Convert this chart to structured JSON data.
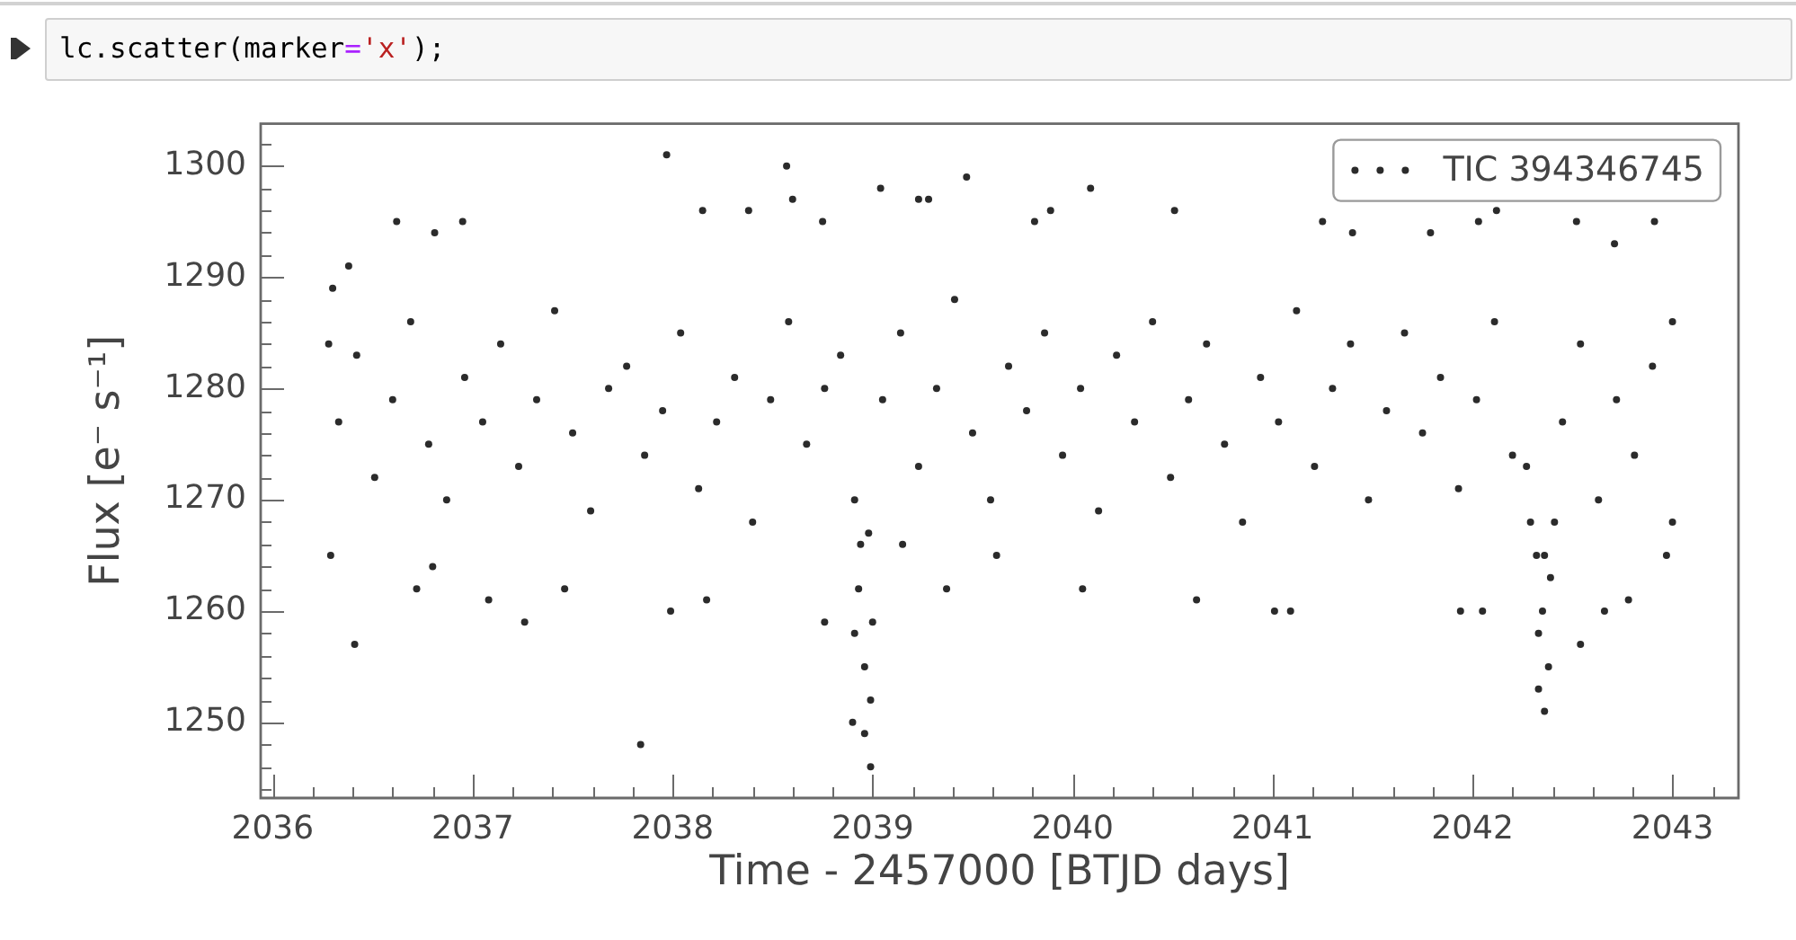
{
  "chart_data": {
    "type": "scatter",
    "xlabel": "Time - 2457000 [BTJD days]",
    "ylabel": "Flux [e⁻ s⁻¹]",
    "annotations": [
      "lc.scatter(marker='x');"
    ],
    "xlim": [
      2035.94,
      2043.33
    ],
    "ylim": [
      1243.2,
      1303.8
    ],
    "xticks": [
      2036,
      {
        "value": 2036.2,
        "label": null
      },
      {
        "value": 2036.4,
        "label": null
      },
      {
        "value": 2036.6,
        "label": null
      },
      {
        "value": 2036.8,
        "label": null
      },
      2037,
      {
        "value": 2037.2,
        "label": null
      },
      {
        "value": 2037.4,
        "label": null
      },
      {
        "value": 2037.6,
        "label": null
      },
      {
        "value": 2037.8,
        "label": null
      },
      2038,
      {
        "value": 2038.2,
        "label": null
      },
      {
        "value": 2038.4,
        "label": null
      },
      {
        "value": 2038.6,
        "label": null
      },
      {
        "value": 2038.8,
        "label": null
      },
      2039,
      {
        "value": 2039.2,
        "label": null
      },
      {
        "value": 2039.4,
        "label": null
      },
      {
        "value": 2039.6,
        "label": null
      },
      {
        "value": 2039.8,
        "label": null
      },
      2040,
      {
        "value": 2040.2,
        "label": null
      },
      {
        "value": 2040.4,
        "label": null
      },
      {
        "value": 2040.6,
        "label": null
      },
      {
        "value": 2040.8,
        "label": null
      },
      2041,
      {
        "value": 2041.2,
        "label": null
      },
      {
        "value": 2041.4,
        "label": null
      },
      {
        "value": 2041.6,
        "label": null
      },
      {
        "value": 2041.8,
        "label": null
      },
      2042,
      {
        "value": 2042.2,
        "label": null
      },
      {
        "value": 2042.4,
        "label": null
      },
      {
        "value": 2042.6,
        "label": null
      },
      {
        "value": 2042.8,
        "label": null
      },
      2043,
      {
        "value": 2043.2,
        "label": null
      }
    ],
    "yticks": [
      {
        "value": 1244,
        "label": null
      },
      {
        "value": 1246,
        "label": null
      },
      {
        "value": 1248,
        "label": null
      },
      1250,
      {
        "value": 1252,
        "label": null
      },
      {
        "value": 1254,
        "label": null
      },
      {
        "value": 1256,
        "label": null
      },
      {
        "value": 1258,
        "label": null
      },
      1260,
      {
        "value": 1262,
        "label": null
      },
      {
        "value": 1264,
        "label": null
      },
      {
        "value": 1266,
        "label": null
      },
      {
        "value": 1268,
        "label": null
      },
      1270,
      {
        "value": 1272,
        "label": null
      },
      {
        "value": 1274,
        "label": null
      },
      {
        "value": 1276,
        "label": null
      },
      {
        "value": 1278,
        "label": null
      },
      1280,
      {
        "value": 1282,
        "label": null
      },
      {
        "value": 1284,
        "label": null
      },
      {
        "value": 1286,
        "label": null
      },
      {
        "value": 1288,
        "label": null
      },
      1290,
      {
        "value": 1292,
        "label": null
      },
      {
        "value": 1294,
        "label": null
      },
      {
        "value": 1296,
        "label": null
      },
      {
        "value": 1298,
        "label": null
      },
      1300,
      {
        "value": 1302,
        "label": null
      }
    ],
    "legend": "top right",
    "marker": "circle",
    "series": [
      {
        "name": "TIC 394346745",
        "color": "#2b2b2b",
        "x": [
          2036.28,
          2036.29,
          2036.3,
          2036.33,
          2036.38,
          2036.41,
          2036.42,
          2036.51,
          2036.6,
          2036.62,
          2036.69,
          2036.72,
          2036.78,
          2036.8,
          2036.81,
          2036.87,
          2036.95,
          2036.96,
          2037.05,
          2037.08,
          2037.14,
          2037.23,
          2037.26,
          2037.32,
          2037.41,
          2037.46,
          2037.5,
          2037.59,
          2037.68,
          2037.77,
          2037.84,
          2037.86,
          2037.95,
          2037.97,
          2037.99,
          2038.04,
          2038.13,
          2038.15,
          2038.17,
          2038.22,
          2038.31,
          2038.38,
          2038.4,
          2038.49,
          2038.57,
          2038.58,
          2038.6,
          2038.67,
          2038.75,
          2038.76,
          2038.76,
          2038.84,
          2038.9,
          2038.91,
          2038.91,
          2038.93,
          2038.94,
          2038.96,
          2038.96,
          2038.98,
          2038.99,
          2038.99,
          2039.0,
          2039.04,
          2039.05,
          2039.14,
          2039.15,
          2039.23,
          2039.23,
          2039.28,
          2039.32,
          2039.37,
          2039.41,
          2039.47,
          2039.5,
          2039.59,
          2039.62,
          2039.68,
          2039.77,
          2039.81,
          2039.86,
          2039.89,
          2039.95,
          2040.04,
          2040.05,
          2040.09,
          2040.13,
          2040.22,
          2040.31,
          2040.4,
          2040.49,
          2040.51,
          2040.58,
          2040.62,
          2040.67,
          2040.76,
          2040.85,
          2040.94,
          2041.01,
          2041.03,
          2041.09,
          2041.12,
          2041.21,
          2041.25,
          2041.3,
          2041.39,
          2041.4,
          2041.48,
          2041.57,
          2041.66,
          2041.75,
          2041.79,
          2041.84,
          2041.93,
          2041.94,
          2042.02,
          2042.03,
          2042.05,
          2042.11,
          2042.12,
          2042.2,
          2042.27,
          2042.29,
          2042.32,
          2042.33,
          2042.33,
          2042.35,
          2042.36,
          2042.36,
          2042.38,
          2042.39,
          2042.41,
          2042.45,
          2042.52,
          2042.54,
          2042.54,
          2042.63,
          2042.66,
          2042.71,
          2042.72,
          2042.78,
          2042.81,
          2042.9,
          2042.91,
          2042.97,
          2043.0,
          2043.0
        ],
        "values": [
          1284,
          1265,
          1289,
          1277,
          1291,
          1257,
          1283,
          1272,
          1279,
          1295,
          1286,
          1262,
          1275,
          1264,
          1294,
          1270,
          1295,
          1281,
          1277,
          1261,
          1284,
          1273,
          1259,
          1279,
          1287,
          1262,
          1276,
          1269,
          1280,
          1282,
          1248,
          1274,
          1278,
          1301,
          1260,
          1285,
          1271,
          1296,
          1261,
          1277,
          1281,
          1296,
          1268,
          1279,
          1300,
          1286,
          1297,
          1275,
          1295,
          1259,
          1280,
          1283,
          1250,
          1258,
          1270,
          1262,
          1266,
          1255,
          1249,
          1267,
          1252,
          1246,
          1259,
          1298,
          1279,
          1285,
          1266,
          1297,
          1273,
          1297,
          1280,
          1262,
          1288,
          1299,
          1276,
          1270,
          1265,
          1282,
          1278,
          1295,
          1285,
          1296,
          1274,
          1280,
          1262,
          1298,
          1269,
          1283,
          1277,
          1286,
          1272,
          1296,
          1279,
          1261,
          1284,
          1275,
          1268,
          1281,
          1260,
          1277,
          1260,
          1287,
          1273,
          1295,
          1280,
          1284,
          1294,
          1270,
          1278,
          1285,
          1276,
          1294,
          1281,
          1271,
          1260,
          1279,
          1295,
          1260,
          1286,
          1296,
          1274,
          1273,
          1268,
          1265,
          1258,
          1253,
          1260,
          1251,
          1265,
          1255,
          1263,
          1268,
          1277,
          1295,
          1284,
          1257,
          1270,
          1260,
          1293,
          1279,
          1261,
          1274,
          1282,
          1295,
          1265,
          1286,
          1268
        ]
      }
    ]
  }
}
